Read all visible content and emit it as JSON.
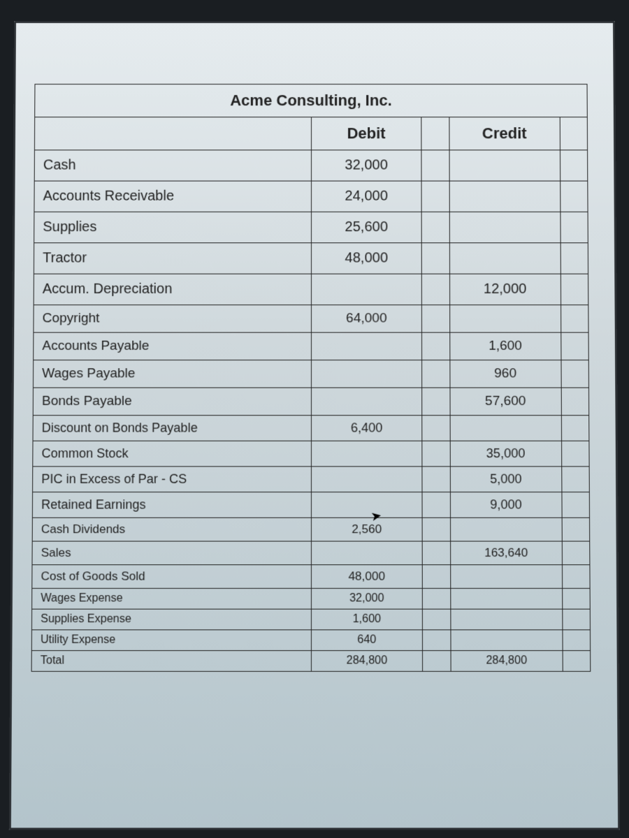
{
  "trial_balance": {
    "company": "Acme Consulting, Inc.",
    "columns": {
      "debit": "Debit",
      "credit": "Credit"
    },
    "rows": [
      {
        "account": "Cash",
        "debit": "32,000",
        "credit": ""
      },
      {
        "account": "Accounts Receivable",
        "debit": "24,000",
        "credit": ""
      },
      {
        "account": "Supplies",
        "debit": "25,600",
        "credit": ""
      },
      {
        "account": "Tractor",
        "debit": "48,000",
        "credit": ""
      },
      {
        "account": "Accum. Depreciation",
        "debit": "",
        "credit": "12,000"
      },
      {
        "account": "Copyright",
        "debit": "64,000",
        "credit": ""
      },
      {
        "account": "Accounts Payable",
        "debit": "",
        "credit": "1,600"
      },
      {
        "account": "Wages Payable",
        "debit": "",
        "credit": "960"
      },
      {
        "account": "Bonds Payable",
        "debit": "",
        "credit": "57,600"
      },
      {
        "account": "Discount on Bonds Payable",
        "debit": "6,400",
        "credit": ""
      },
      {
        "account": "Common Stock",
        "debit": "",
        "credit": "35,000"
      },
      {
        "account": "PIC in Excess of Par - CS",
        "debit": "",
        "credit": "5,000"
      },
      {
        "account": "Retained Earnings",
        "debit": "",
        "credit": "9,000"
      },
      {
        "account": "Cash Dividends",
        "debit": "2,560",
        "credit": ""
      },
      {
        "account": "Sales",
        "debit": "",
        "credit": "163,640"
      },
      {
        "account": "Cost of Goods Sold",
        "debit": "48,000",
        "credit": ""
      },
      {
        "account": "Wages Expense",
        "debit": "32,000",
        "credit": ""
      },
      {
        "account": "Supplies Expense",
        "debit": "1,600",
        "credit": ""
      },
      {
        "account": "Utility Expense",
        "debit": "640",
        "credit": ""
      },
      {
        "account": "Total",
        "debit": "284,800",
        "credit": "284,800"
      }
    ],
    "style": {
      "border_color": "#222222",
      "text_color": "#222222",
      "header_fontsize_pt": 16,
      "body_fontsize_pt": 14,
      "background_gradient": [
        "#e6ecef",
        "#cfd8dc",
        "#b3c4cb"
      ],
      "column_widths_pct": {
        "account": 50,
        "debit": 20,
        "gap": 5,
        "credit": 20,
        "gap2": 5
      }
    }
  }
}
